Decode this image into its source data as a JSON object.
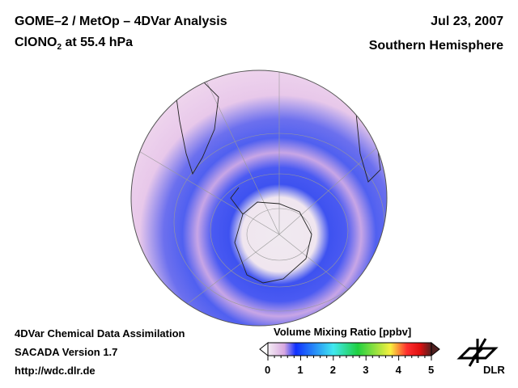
{
  "header": {
    "title": "GOME–2 / MetOp – 4DVar Analysis",
    "species_prefix": "ClONO",
    "species_sub": "2",
    "species_suffix": " at 55.4 hPa",
    "date": "Jul 23, 2007",
    "region": "Southern Hemisphere"
  },
  "footer": {
    "line1": "4DVar Chemical Data Assimilation",
    "line2": "SACADA Version 1.7",
    "line3": "http://wdc.dlr.de"
  },
  "colorbar": {
    "title": "Volume Mixing Ratio [ppbv]",
    "ticks": [
      "0",
      "1",
      "2",
      "3",
      "4",
      "5"
    ],
    "range": [
      0,
      5
    ]
  },
  "logo": {
    "text": "DLR"
  }
}
